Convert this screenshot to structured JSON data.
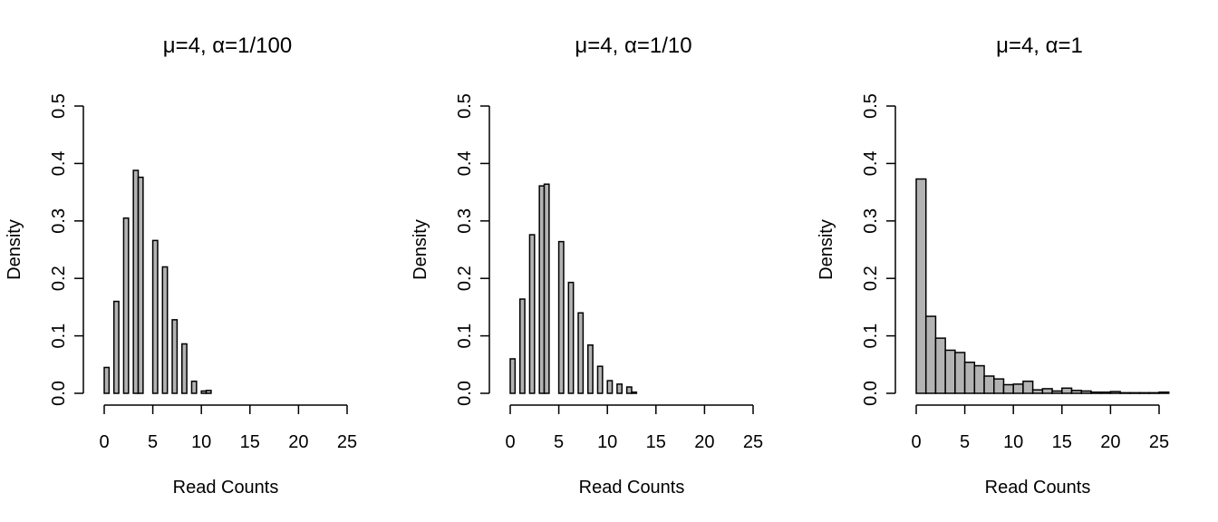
{
  "chart_data": [
    {
      "type": "bar",
      "title": "μ=4, α=1/100",
      "xlabel": "Read Counts",
      "ylabel": "Density",
      "xlim": [
        0,
        25
      ],
      "ylim": [
        0,
        0.5
      ],
      "xticks": [
        "0",
        "5",
        "10",
        "15",
        "20",
        "25"
      ],
      "yticks": [
        "0.0",
        "0.1",
        "0.2",
        "0.3",
        "0.4",
        "0.5"
      ],
      "grid": false,
      "bars": [
        {
          "x0": 0,
          "x1": 0.5,
          "density": 0.045
        },
        {
          "x0": 0.5,
          "x1": 1,
          "density": 0.0
        },
        {
          "x0": 1,
          "x1": 1.5,
          "density": 0.16
        },
        {
          "x0": 1.5,
          "x1": 2,
          "density": 0.0
        },
        {
          "x0": 2,
          "x1": 2.5,
          "density": 0.305
        },
        {
          "x0": 2.5,
          "x1": 3,
          "density": 0.0
        },
        {
          "x0": 3,
          "x1": 3.5,
          "density": 0.388
        },
        {
          "x0": 3.5,
          "x1": 4,
          "density": 0.376
        },
        {
          "x0": 4,
          "x1": 4.5,
          "density": 0.0
        },
        {
          "x0": 4.5,
          "x1": 5,
          "density": 0.0
        },
        {
          "x0": 5,
          "x1": 5.5,
          "density": 0.266
        },
        {
          "x0": 5.5,
          "x1": 6,
          "density": 0.0
        },
        {
          "x0": 6,
          "x1": 6.5,
          "density": 0.22
        },
        {
          "x0": 6.5,
          "x1": 7,
          "density": 0.0
        },
        {
          "x0": 7,
          "x1": 7.5,
          "density": 0.128
        },
        {
          "x0": 7.5,
          "x1": 8,
          "density": 0.0
        },
        {
          "x0": 8,
          "x1": 8.5,
          "density": 0.086
        },
        {
          "x0": 8.5,
          "x1": 9,
          "density": 0.0
        },
        {
          "x0": 9,
          "x1": 9.5,
          "density": 0.021
        },
        {
          "x0": 9.5,
          "x1": 10,
          "density": 0.0
        },
        {
          "x0": 10,
          "x1": 10.5,
          "density": 0.004
        },
        {
          "x0": 10.5,
          "x1": 11,
          "density": 0.005
        }
      ]
    },
    {
      "type": "bar",
      "title": "μ=4, α=1/10",
      "xlabel": "Read Counts",
      "ylabel": "Density",
      "xlim": [
        0,
        25
      ],
      "ylim": [
        0,
        0.5
      ],
      "xticks": [
        "0",
        "5",
        "10",
        "15",
        "20",
        "25"
      ],
      "yticks": [
        "0.0",
        "0.1",
        "0.2",
        "0.3",
        "0.4",
        "0.5"
      ],
      "grid": false,
      "bars": [
        {
          "x0": 0,
          "x1": 0.5,
          "density": 0.06
        },
        {
          "x0": 0.5,
          "x1": 1,
          "density": 0.0
        },
        {
          "x0": 1,
          "x1": 1.5,
          "density": 0.164
        },
        {
          "x0": 1.5,
          "x1": 2,
          "density": 0.0
        },
        {
          "x0": 2,
          "x1": 2.5,
          "density": 0.276
        },
        {
          "x0": 2.5,
          "x1": 3,
          "density": 0.0
        },
        {
          "x0": 3,
          "x1": 3.5,
          "density": 0.361
        },
        {
          "x0": 3.5,
          "x1": 4,
          "density": 0.364
        },
        {
          "x0": 4,
          "x1": 4.5,
          "density": 0.0
        },
        {
          "x0": 4.5,
          "x1": 5,
          "density": 0.0
        },
        {
          "x0": 5,
          "x1": 5.5,
          "density": 0.264
        },
        {
          "x0": 5.5,
          "x1": 6,
          "density": 0.0
        },
        {
          "x0": 6,
          "x1": 6.5,
          "density": 0.193
        },
        {
          "x0": 6.5,
          "x1": 7,
          "density": 0.0
        },
        {
          "x0": 7,
          "x1": 7.5,
          "density": 0.14
        },
        {
          "x0": 7.5,
          "x1": 8,
          "density": 0.0
        },
        {
          "x0": 8,
          "x1": 8.5,
          "density": 0.084
        },
        {
          "x0": 8.5,
          "x1": 9,
          "density": 0.0
        },
        {
          "x0": 9,
          "x1": 9.5,
          "density": 0.047
        },
        {
          "x0": 9.5,
          "x1": 10,
          "density": 0.0
        },
        {
          "x0": 10,
          "x1": 10.5,
          "density": 0.022
        },
        {
          "x0": 10.5,
          "x1": 11,
          "density": 0.0
        },
        {
          "x0": 11,
          "x1": 11.5,
          "density": 0.016
        },
        {
          "x0": 11.5,
          "x1": 12,
          "density": 0.0
        },
        {
          "x0": 12,
          "x1": 12.5,
          "density": 0.011
        },
        {
          "x0": 12.5,
          "x1": 13,
          "density": 0.002
        }
      ]
    },
    {
      "type": "bar",
      "title": "μ=4, α=1",
      "xlabel": "Read Counts",
      "ylabel": "Density",
      "xlim": [
        0,
        25
      ],
      "ylim": [
        0,
        0.5
      ],
      "xticks": [
        "0",
        "5",
        "10",
        "15",
        "20",
        "25"
      ],
      "yticks": [
        "0.0",
        "0.1",
        "0.2",
        "0.3",
        "0.4",
        "0.5"
      ],
      "grid": false,
      "bars": [
        {
          "x0": 0,
          "x1": 1,
          "density": 0.373
        },
        {
          "x0": 1,
          "x1": 2,
          "density": 0.134
        },
        {
          "x0": 2,
          "x1": 3,
          "density": 0.096
        },
        {
          "x0": 3,
          "x1": 4,
          "density": 0.075
        },
        {
          "x0": 4,
          "x1": 5,
          "density": 0.071
        },
        {
          "x0": 5,
          "x1": 6,
          "density": 0.054
        },
        {
          "x0": 6,
          "x1": 7,
          "density": 0.048
        },
        {
          "x0": 7,
          "x1": 8,
          "density": 0.03
        },
        {
          "x0": 8,
          "x1": 9,
          "density": 0.025
        },
        {
          "x0": 9,
          "x1": 10,
          "density": 0.015
        },
        {
          "x0": 10,
          "x1": 11,
          "density": 0.016
        },
        {
          "x0": 11,
          "x1": 12,
          "density": 0.021
        },
        {
          "x0": 12,
          "x1": 13,
          "density": 0.006
        },
        {
          "x0": 13,
          "x1": 14,
          "density": 0.008
        },
        {
          "x0": 14,
          "x1": 15,
          "density": 0.004
        },
        {
          "x0": 15,
          "x1": 16,
          "density": 0.009
        },
        {
          "x0": 16,
          "x1": 17,
          "density": 0.005
        },
        {
          "x0": 17,
          "x1": 18,
          "density": 0.004
        },
        {
          "x0": 18,
          "x1": 19,
          "density": 0.002
        },
        {
          "x0": 19,
          "x1": 20,
          "density": 0.002
        },
        {
          "x0": 20,
          "x1": 21,
          "density": 0.003
        },
        {
          "x0": 21,
          "x1": 22,
          "density": 0.001
        },
        {
          "x0": 22,
          "x1": 23,
          "density": 0.001
        },
        {
          "x0": 23,
          "x1": 24,
          "density": 0.001
        },
        {
          "x0": 24,
          "x1": 25,
          "density": 0.001
        },
        {
          "x0": 25,
          "x1": 26,
          "density": 0.002
        }
      ]
    }
  ]
}
